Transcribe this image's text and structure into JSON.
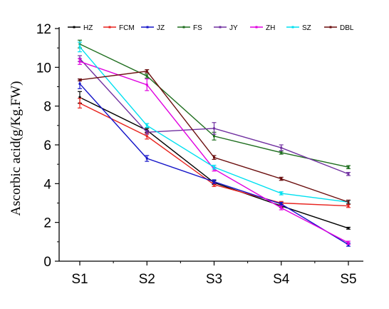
{
  "chart_data": {
    "type": "line",
    "title": "",
    "xlabel": "",
    "ylabel": "Ascorbic acid(g/Kg.FW)",
    "categories": [
      "S1",
      "S2",
      "S3",
      "S4",
      "S5"
    ],
    "ylim": [
      0,
      12
    ],
    "yticks": [
      0,
      2,
      4,
      6,
      8,
      10,
      12
    ],
    "grid": false,
    "legend_position": "top",
    "error_bars": true,
    "series": [
      {
        "name": "HZ",
        "color": "#000000",
        "values": [
          8.45,
          6.75,
          4.05,
          2.85,
          1.7
        ],
        "errors": [
          0.3,
          0.1,
          0.1,
          0.08,
          0.05
        ]
      },
      {
        "name": "FCM",
        "color": "#e8231e",
        "values": [
          8.15,
          6.45,
          3.95,
          3.0,
          2.85
        ],
        "errors": [
          0.25,
          0.15,
          0.1,
          0.08,
          0.08
        ]
      },
      {
        "name": "JZ",
        "color": "#1414c8",
        "values": [
          9.15,
          5.3,
          4.1,
          2.95,
          0.85
        ],
        "errors": [
          0.25,
          0.15,
          0.1,
          0.08,
          0.08
        ]
      },
      {
        "name": "FS",
        "color": "#1e6e1e",
        "values": [
          11.2,
          9.55,
          6.45,
          5.6,
          4.85
        ],
        "errors": [
          0.2,
          0.1,
          0.2,
          0.08,
          0.08
        ]
      },
      {
        "name": "JY",
        "color": "#7030a0",
        "values": [
          10.45,
          6.65,
          6.85,
          5.85,
          4.5
        ],
        "errors": [
          0.15,
          0.1,
          0.3,
          0.15,
          0.08
        ]
      },
      {
        "name": "ZH",
        "color": "#e000e0",
        "values": [
          10.3,
          9.1,
          4.75,
          2.75,
          0.95
        ],
        "errors": [
          0.15,
          0.3,
          0.1,
          0.1,
          0.08
        ]
      },
      {
        "name": "SZ",
        "color": "#00e0f0",
        "values": [
          11.05,
          7.0,
          4.85,
          3.5,
          3.05
        ],
        "errors": [
          0.25,
          0.1,
          0.1,
          0.08,
          0.08
        ]
      },
      {
        "name": "DBL",
        "color": "#6b0e0e",
        "values": [
          9.35,
          9.8,
          5.35,
          4.25,
          3.05
        ],
        "errors": [
          0.05,
          0.08,
          0.1,
          0.08,
          0.1
        ]
      }
    ]
  }
}
